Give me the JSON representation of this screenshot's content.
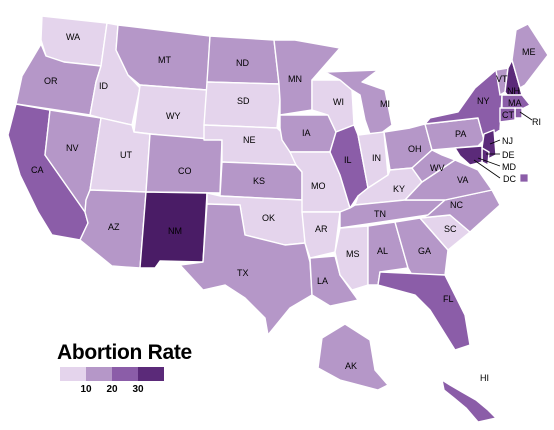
{
  "map": {
    "colors": {
      "level1": "#e4d4ec",
      "level2": "#b597c8",
      "level3": "#8b5da8",
      "level4": "#5b2a79",
      "level5": "#4a1c66",
      "border": "#ffffff"
    },
    "states": [
      {
        "code": "WA",
        "level": 1
      },
      {
        "code": "OR",
        "level": 2
      },
      {
        "code": "CA",
        "level": 3
      },
      {
        "code": "NV",
        "level": 2
      },
      {
        "code": "ID",
        "level": 1
      },
      {
        "code": "MT",
        "level": 2
      },
      {
        "code": "WY",
        "level": 1
      },
      {
        "code": "UT",
        "level": 1
      },
      {
        "code": "AZ",
        "level": 2
      },
      {
        "code": "CO",
        "level": 2
      },
      {
        "code": "NM",
        "level": 5
      },
      {
        "code": "ND",
        "level": 2
      },
      {
        "code": "SD",
        "level": 1
      },
      {
        "code": "NE",
        "level": 1
      },
      {
        "code": "KS",
        "level": 2
      },
      {
        "code": "OK",
        "level": 1
      },
      {
        "code": "TX",
        "level": 2
      },
      {
        "code": "MN",
        "level": 2
      },
      {
        "code": "IA",
        "level": 2
      },
      {
        "code": "MO",
        "level": 1
      },
      {
        "code": "AR",
        "level": 1
      },
      {
        "code": "LA",
        "level": 2
      },
      {
        "code": "WI",
        "level": 1
      },
      {
        "code": "IL",
        "level": 3
      },
      {
        "code": "MI",
        "level": 2
      },
      {
        "code": "IN",
        "level": 1
      },
      {
        "code": "OH",
        "level": 2
      },
      {
        "code": "KY",
        "level": 1
      },
      {
        "code": "TN",
        "level": 2
      },
      {
        "code": "MS",
        "level": 1
      },
      {
        "code": "AL",
        "level": 2
      },
      {
        "code": "GA",
        "level": 2
      },
      {
        "code": "FL",
        "level": 3
      },
      {
        "code": "SC",
        "level": 1
      },
      {
        "code": "NC",
        "level": 2
      },
      {
        "code": "VA",
        "level": 2
      },
      {
        "code": "WV",
        "level": 2
      },
      {
        "code": "PA",
        "level": 2
      },
      {
        "code": "NY",
        "level": 3
      },
      {
        "code": "VT",
        "level": 2
      },
      {
        "code": "NH",
        "level": 4
      },
      {
        "code": "ME",
        "level": 2
      },
      {
        "code": "MA",
        "level": 3
      },
      {
        "code": "RI",
        "level": 3
      },
      {
        "code": "CT",
        "level": 3
      },
      {
        "code": "NJ",
        "level": 4
      },
      {
        "code": "DE",
        "level": 4
      },
      {
        "code": "MD",
        "level": 4
      },
      {
        "code": "DC",
        "level": 3
      },
      {
        "code": "AK",
        "level": 2
      },
      {
        "code": "HI",
        "level": 3
      }
    ]
  },
  "legend": {
    "title": "Abortion Rate",
    "ticks": [
      "10",
      "20",
      "30"
    ],
    "colors": [
      "#e4d4ec",
      "#b597c8",
      "#8b5da8",
      "#5b2a79"
    ]
  }
}
